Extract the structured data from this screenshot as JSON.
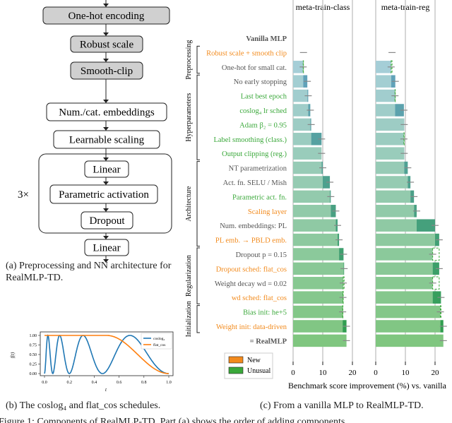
{
  "diagram": {
    "boxes": [
      "One-hot encoding",
      "Robust scale",
      "Smooth-clip",
      "Num./cat. embeddings",
      "Learnable scaling",
      "Linear",
      "Parametric activation",
      "Dropout",
      "Linear"
    ],
    "repeat_label": "3×",
    "caption": "(a) Preprocessing and NN architecture for RealMLP-TD."
  },
  "captions": {
    "b": "(b) The coslog₄ and flat_cos schedules.",
    "c": "(c) From a vanilla MLP to RealMLP-TD.",
    "figure": "Figure 1: Components of RealMLP-TD. Part (a) shows the order of adding components ..."
  },
  "colors": {
    "new": "#f28a1c",
    "unusual": "#3aa83a",
    "neutral": "#555555",
    "bar_start": "#6aa3cc",
    "bar_end": "#72c072"
  },
  "chart_data": [
    {
      "type": "line",
      "title": "",
      "xlabel": "t",
      "ylabel": "f(t)",
      "xlim": [
        0,
        1
      ],
      "ylim": [
        0,
        1
      ],
      "xticks": [
        "0.0",
        "0.2",
        "0.4",
        "0.6",
        "0.8",
        "1.0"
      ],
      "yticks": [
        "0.00",
        "0.25",
        "0.50",
        "0.75",
        "1.00"
      ],
      "legend_position": "top-right",
      "series": [
        {
          "name": "coslog₄",
          "color": "#1f77b4",
          "formula": "(1-cos(2π·log2(1+15t)))/2"
        },
        {
          "name": "flat_cos",
          "color": "#ff7f0e",
          "formula": "1 for t<0.5, else (1+cos(π(2t-1)))/2"
        }
      ]
    },
    {
      "type": "bar",
      "orientation": "horizontal",
      "xlabel": "Benchmark score improvement (%) vs. vanilla",
      "panels": [
        "meta-train-class",
        "meta-train-reg"
      ],
      "xlim": [
        0,
        24
      ],
      "xticks": [
        "0",
        "10",
        "20"
      ],
      "grid": true,
      "legend": [
        {
          "label": "New",
          "color": "#f28a1c"
        },
        {
          "label": "Unusual",
          "color": "#3aa83a"
        }
      ],
      "legend_position": "bottom-left",
      "groups": [
        {
          "name": "Preprocessing",
          "rows": [
            1,
            2
          ]
        },
        {
          "name": "Hyperparameters",
          "rows": [
            3,
            8
          ]
        },
        {
          "name": "Architecture",
          "rows": [
            9,
            14
          ]
        },
        {
          "name": "Regularization",
          "rows": [
            15,
            18
          ]
        },
        {
          "name": "Initialization",
          "rows": [
            19,
            20
          ]
        }
      ],
      "rows": [
        {
          "label": "Vanilla MLP",
          "kind": "base",
          "class": 0,
          "reg": 0
        },
        {
          "label": "Robust scale + smooth clip",
          "kind": "new",
          "class": 3.5,
          "reg": 5.5
        },
        {
          "label": "One-hot for small cat.",
          "kind": "neutral",
          "class": 3.4,
          "reg": 5.2
        },
        {
          "label": "No early stopping",
          "kind": "neutral",
          "class": 4.8,
          "reg": 6.6
        },
        {
          "label": "Last best epoch",
          "kind": "unusual",
          "class": 5.1,
          "reg": 6.5
        },
        {
          "label": "coslog₄ lr sched",
          "kind": "unusual",
          "class": 5.8,
          "reg": 9.5
        },
        {
          "label": "Adam β₂ = 0.95",
          "kind": "unusual",
          "class": 6.1,
          "reg": 9.6
        },
        {
          "label": "Label smoothing (class.)",
          "kind": "unusual",
          "class": 9.6,
          "reg": 9.5
        },
        {
          "label": "Output clipping (reg.)",
          "kind": "unusual",
          "class": 9.6,
          "reg": 9.6
        },
        {
          "label": "NT parametrization",
          "kind": "neutral",
          "class": 10.0,
          "reg": 10.8
        },
        {
          "label": "Act. fn. SELU / Mish",
          "kind": "neutral",
          "class": 12.4,
          "reg": 11.7
        },
        {
          "label": "Parametric act. fn.",
          "kind": "unusual",
          "class": 12.7,
          "reg": 12.9
        },
        {
          "label": "Scaling layer",
          "kind": "new",
          "class": 14.4,
          "reg": 13.8
        },
        {
          "label": "Num. embeddings: PL",
          "kind": "neutral",
          "class": 15.0,
          "reg": 20.0
        },
        {
          "label": "PL emb. → PBLD emb.",
          "kind": "new",
          "class": 15.5,
          "reg": 21.4
        },
        {
          "label": "Dropout p = 0.15",
          "kind": "neutral",
          "class": 17.0,
          "reg": 19.2
        },
        {
          "label": "Dropout sched: flat_cos",
          "kind": "new",
          "class": 17.2,
          "reg": 21.4
        },
        {
          "label": "Weight decay wd = 0.02",
          "kind": "neutral",
          "class": 16.9,
          "reg": 19.2
        },
        {
          "label": "wd sched: flat_cos",
          "kind": "new",
          "class": 16.8,
          "reg": 22.0
        },
        {
          "label": "Bias init: he+5",
          "kind": "unusual",
          "class": 16.7,
          "reg": 21.8
        },
        {
          "label": "Weight init: data-driven",
          "kind": "new",
          "class": 18.0,
          "reg": 22.8
        },
        {
          "label": "= RealMLP",
          "kind": "final",
          "class": 18.0,
          "reg": 22.8
        }
      ]
    }
  ]
}
